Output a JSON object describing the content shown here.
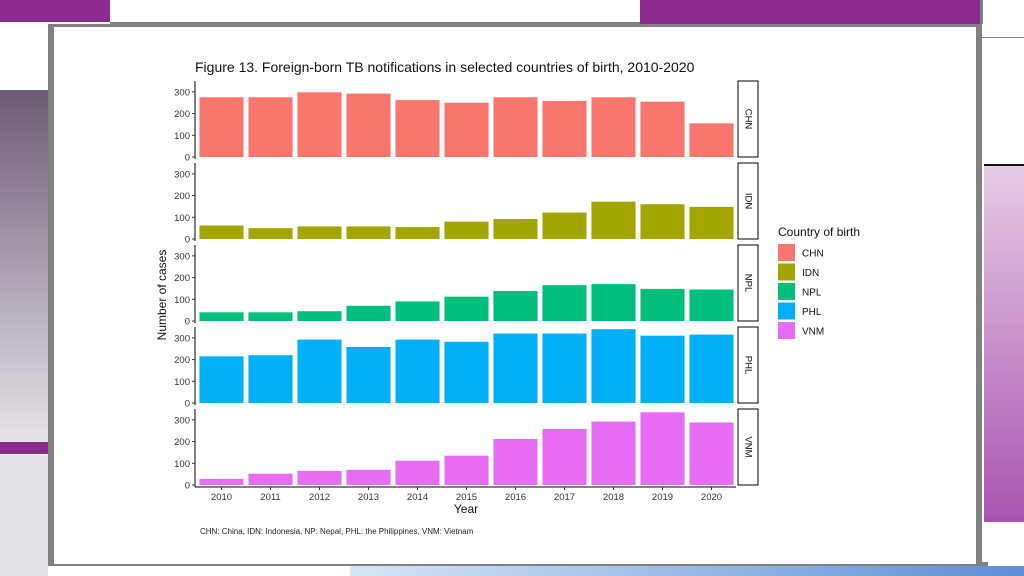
{
  "colors": {
    "purple_accent": "#8B2A8F",
    "frame_gray": "#808080",
    "light_gray_block": "#BDB7C3",
    "blue_bar": "#5B8FD6",
    "pink_gradient_top": "#E8CCE6",
    "pink_gradient_bottom": "#A855B0",
    "mauve_gradient_top": "#6D5A75",
    "mauve_gradient_bottom": "#E6E3E8"
  },
  "footnote": "CHN: China, IDN: Indonesia, NP: Nepal, PHL: the Philippines, VNM: Vietnam",
  "chart_data": {
    "type": "bar",
    "title": "Figure 13. Foreign-born TB notifications in selected countries of birth, 2010-2020",
    "xlabel": "Year",
    "ylabel": "Number of cases",
    "categories": [
      "2010",
      "2011",
      "2012",
      "2013",
      "2014",
      "2015",
      "2016",
      "2017",
      "2018",
      "2019",
      "2020"
    ],
    "ylim": [
      0,
      350
    ],
    "yticks": [
      0,
      100,
      200,
      300
    ],
    "facets": "rows by country",
    "legend": {
      "title": "Country of birth",
      "position": "right"
    },
    "series": [
      {
        "name": "CHN",
        "color": "#F8766D",
        "values": [
          275,
          275,
          298,
          292,
          262,
          250,
          275,
          258,
          275,
          255,
          155
        ]
      },
      {
        "name": "IDN",
        "color": "#A3A500",
        "values": [
          62,
          50,
          58,
          58,
          55,
          80,
          92,
          122,
          172,
          160,
          148
        ]
      },
      {
        "name": "NPL",
        "color": "#00BF7D",
        "values": [
          40,
          40,
          45,
          70,
          90,
          112,
          138,
          165,
          170,
          148,
          145
        ]
      },
      {
        "name": "PHL",
        "color": "#00B0F6",
        "values": [
          215,
          220,
          292,
          258,
          292,
          282,
          320,
          320,
          340,
          310,
          315
        ]
      },
      {
        "name": "VNM",
        "color": "#E76BF3",
        "values": [
          28,
          52,
          65,
          70,
          112,
          135,
          212,
          258,
          292,
          335,
          288
        ]
      }
    ]
  }
}
